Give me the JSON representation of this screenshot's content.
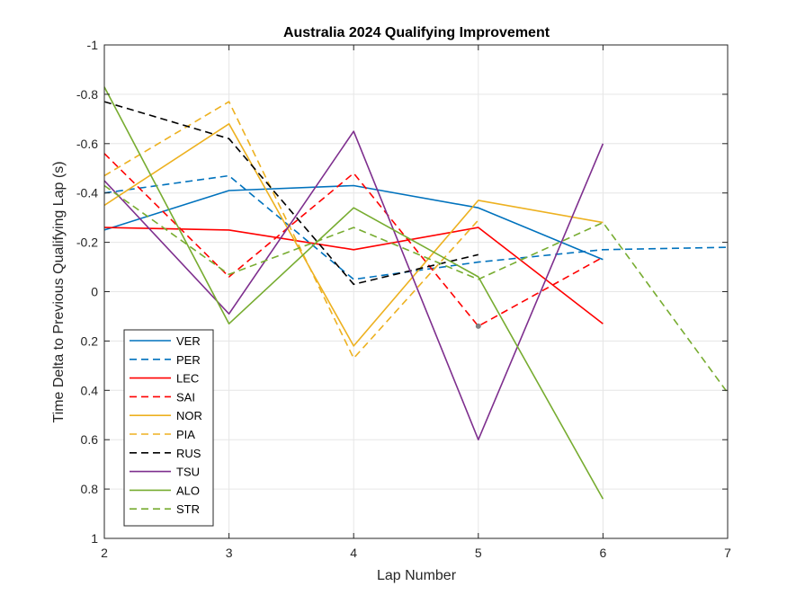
{
  "chart_data": {
    "type": "line",
    "title": "Australia 2024 Qualifying Improvement",
    "xlabel": "Lap Number",
    "ylabel": "Time Delta to Previous Qualifying Lap (s)",
    "xlim": [
      2,
      7
    ],
    "ylim": [
      -1,
      1
    ],
    "y_reversed": true,
    "grid": true,
    "legend_position": "bottom-left",
    "xticks": [
      "2",
      "3",
      "4",
      "5",
      "6",
      "7"
    ],
    "yticks": [
      "-1",
      "-0.8",
      "-0.6",
      "-0.4",
      "-0.2",
      "0",
      "0.2",
      "0.4",
      "0.6",
      "0.8",
      "1"
    ],
    "series": [
      {
        "name": "VER",
        "color": "#0072bd",
        "style": "solid",
        "points": [
          [
            2,
            -0.25
          ],
          [
            3,
            -0.41
          ],
          [
            4,
            -0.43
          ],
          [
            5,
            -0.34
          ],
          [
            6,
            -0.13
          ]
        ]
      },
      {
        "name": "PER",
        "color": "#0072bd",
        "style": "dashed",
        "points": [
          [
            2,
            -0.4
          ],
          [
            3,
            -0.47
          ],
          [
            4,
            -0.05
          ],
          [
            5,
            -0.12
          ],
          [
            6,
            -0.17
          ],
          [
            7,
            -0.18
          ]
        ]
      },
      {
        "name": "LEC",
        "color": "#ff0000",
        "style": "solid",
        "points": [
          [
            2,
            -0.26
          ],
          [
            3,
            -0.25
          ],
          [
            4,
            -0.17
          ],
          [
            5,
            -0.26
          ],
          [
            6,
            0.13
          ]
        ]
      },
      {
        "name": "SAI",
        "color": "#ff0000",
        "style": "dashed",
        "points": [
          [
            2,
            -0.56
          ],
          [
            3,
            -0.06
          ],
          [
            4,
            -0.48
          ],
          [
            5,
            0.14
          ],
          [
            6,
            -0.14
          ]
        ]
      },
      {
        "name": "NOR",
        "color": "#edb120",
        "style": "solid",
        "points": [
          [
            2,
            -0.35
          ],
          [
            3,
            -0.68
          ],
          [
            4,
            0.22
          ],
          [
            5,
            -0.37
          ],
          [
            6,
            -0.28
          ]
        ]
      },
      {
        "name": "PIA",
        "color": "#edb120",
        "style": "dashed",
        "points": [
          [
            2,
            -0.47
          ],
          [
            3,
            -0.77
          ],
          [
            4,
            0.27
          ],
          [
            5,
            -0.29
          ]
        ]
      },
      {
        "name": "RUS",
        "color": "#000000",
        "style": "dashed",
        "points": [
          [
            2,
            -0.77
          ],
          [
            3,
            -0.62
          ],
          [
            4,
            -0.03
          ],
          [
            5,
            -0.15
          ]
        ]
      },
      {
        "name": "TSU",
        "color": "#7e2f8e",
        "style": "solid",
        "points": [
          [
            2,
            -0.45
          ],
          [
            3,
            0.09
          ],
          [
            4,
            -0.65
          ],
          [
            5,
            0.6
          ],
          [
            6,
            -0.6
          ]
        ]
      },
      {
        "name": "ALO",
        "color": "#77ac30",
        "style": "solid",
        "points": [
          [
            2,
            -0.83
          ],
          [
            3,
            0.13
          ],
          [
            4,
            -0.34
          ],
          [
            5,
            -0.06
          ],
          [
            6,
            0.84
          ]
        ]
      },
      {
        "name": "STR",
        "color": "#77ac30",
        "style": "dashed",
        "points": [
          [
            2,
            -0.43
          ],
          [
            3,
            -0.07
          ],
          [
            4,
            -0.26
          ],
          [
            5,
            -0.05
          ],
          [
            6,
            -0.28
          ],
          [
            7,
            0.41
          ]
        ]
      }
    ],
    "markers": [
      {
        "x": 5,
        "y": 0.14,
        "color": "#808080"
      }
    ]
  }
}
